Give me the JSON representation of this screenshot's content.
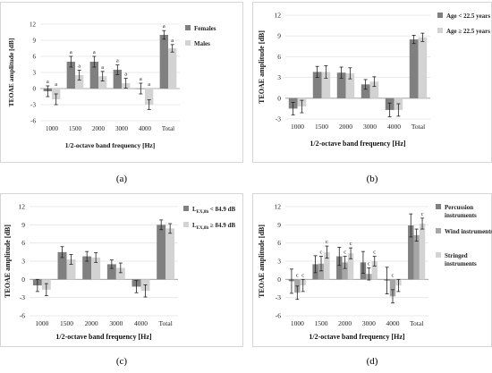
{
  "chart_data": [
    {
      "panel": "(a)",
      "type": "bar",
      "categories": [
        "1000",
        "1500",
        "2000",
        "3000",
        "4000",
        "Total"
      ],
      "ylabel": "TEOAE amplitude [dB]",
      "xlabel": "1/2-octave band frequency [Hz]",
      "ylim": [
        -6,
        12
      ],
      "yticks": [
        "-6",
        "-3",
        "0",
        "3",
        "6",
        "9",
        "12"
      ],
      "legend_position": "right",
      "series": [
        {
          "name": "Females",
          "color": "#808080",
          "values": [
            -0.5,
            5.0,
            5.0,
            3.5,
            0.0,
            10.0
          ],
          "errors": [
            1.0,
            1.0,
            1.0,
            0.9,
            1.0,
            0.8
          ],
          "labels": [
            "a",
            "a",
            "a",
            "a",
            "a",
            "a"
          ]
        },
        {
          "name": "Males",
          "color": "#d3d3d3",
          "values": [
            -2.0,
            2.5,
            2.3,
            1.0,
            -3.0,
            7.5
          ],
          "errors": [
            1.0,
            0.9,
            0.9,
            0.9,
            0.9,
            0.7
          ],
          "labels": [
            "a",
            "a",
            "a",
            "a",
            "a",
            "a"
          ]
        }
      ]
    },
    {
      "panel": "(b)",
      "type": "bar",
      "categories": [
        "1000",
        "1500",
        "2000",
        "3000",
        "4000",
        "Total"
      ],
      "ylabel": "TEOAE amplitude [dB]",
      "xlabel": "1/2-octave band frequency [Hz]",
      "ylim": [
        -3,
        12
      ],
      "yticks": [
        "-3",
        "0",
        "3",
        "6",
        "9",
        "12"
      ],
      "legend_position": "right",
      "series": [
        {
          "name": "Age < 22.5 years",
          "color": "#808080",
          "values": [
            -1.5,
            3.8,
            3.7,
            2.0,
            -1.7,
            8.5
          ],
          "errors": [
            0.9,
            0.8,
            0.8,
            0.7,
            1.0,
            0.6
          ]
        },
        {
          "name": "Age ≥ 22.5 years",
          "color": "#d3d3d3",
          "values": [
            -1.2,
            3.8,
            3.6,
            2.4,
            -1.7,
            8.8
          ],
          "errors": [
            0.9,
            0.9,
            0.8,
            0.7,
            0.9,
            0.6
          ]
        }
      ]
    },
    {
      "panel": "(c)",
      "type": "bar",
      "categories": [
        "1000",
        "1500",
        "2000",
        "3000",
        "4000",
        "Total"
      ],
      "ylabel": "TEOAE amplitude [dB]",
      "xlabel": "1/2-octave band frequency [Hz]",
      "ylim": [
        -6,
        12
      ],
      "yticks": [
        "-6",
        "-3",
        "0",
        "3",
        "6",
        "9",
        "12"
      ],
      "legend_position": "right",
      "series": [
        {
          "name": "L",
          "subscript": "EX,8h",
          "name_suffix": " < 84.9 dB",
          "color": "#808080",
          "values": [
            -1.0,
            4.5,
            3.8,
            2.5,
            -1.2,
            9.0
          ],
          "errors": [
            1.0,
            0.9,
            0.8,
            0.7,
            1.0,
            0.8
          ]
        },
        {
          "name": "L",
          "subscript": "EX,8h",
          "name_suffix": " ≥ 84.9 dB",
          "color": "#d3d3d3",
          "values": [
            -1.7,
            3.3,
            3.6,
            1.9,
            -1.9,
            8.4
          ],
          "errors": [
            1.0,
            0.8,
            0.8,
            0.8,
            1.0,
            0.8
          ]
        }
      ]
    },
    {
      "panel": "(d)",
      "type": "bar",
      "categories": [
        "1000",
        "1500",
        "2000",
        "3000",
        "4000",
        "Total"
      ],
      "ylabel": "TEOAE amplitude [dB]",
      "xlabel": "1/2-octave band frequency [Hz]",
      "ylim": [
        -6,
        12
      ],
      "yticks": [
        "-6",
        "-3",
        "0",
        "3",
        "6",
        "9",
        "12"
      ],
      "legend_position": "right",
      "series": [
        {
          "name": "Percussion instruments",
          "color": "#808080",
          "values": [
            -0.3,
            2.5,
            3.8,
            2.8,
            -0.2,
            8.9
          ],
          "errors": [
            2.0,
            1.4,
            1.5,
            1.8,
            2.2,
            1.9
          ]
        },
        {
          "name": "Wind instruments",
          "color": "#a6a6a6",
          "values": [
            -2.2,
            2.6,
            2.8,
            0.9,
            -2.8,
            7.3
          ],
          "errors": [
            1.1,
            1.2,
            1.0,
            1.0,
            1.1,
            1.0
          ],
          "labels": [
            "c",
            "c",
            "c",
            "c",
            "c",
            ""
          ]
        },
        {
          "name": "Stringed instruments",
          "color": "#d3d3d3",
          "values": [
            -1.0,
            4.5,
            4.3,
            3.0,
            -1.0,
            9.2
          ],
          "errors": [
            1.0,
            1.0,
            0.9,
            0.8,
            1.0,
            0.9
          ],
          "labels": [
            "c",
            "c",
            "c",
            "c",
            "",
            "c"
          ]
        }
      ]
    }
  ],
  "captions": {
    "a": "(a)",
    "b": "(b)",
    "c": "(c)",
    "d": "(d)"
  }
}
